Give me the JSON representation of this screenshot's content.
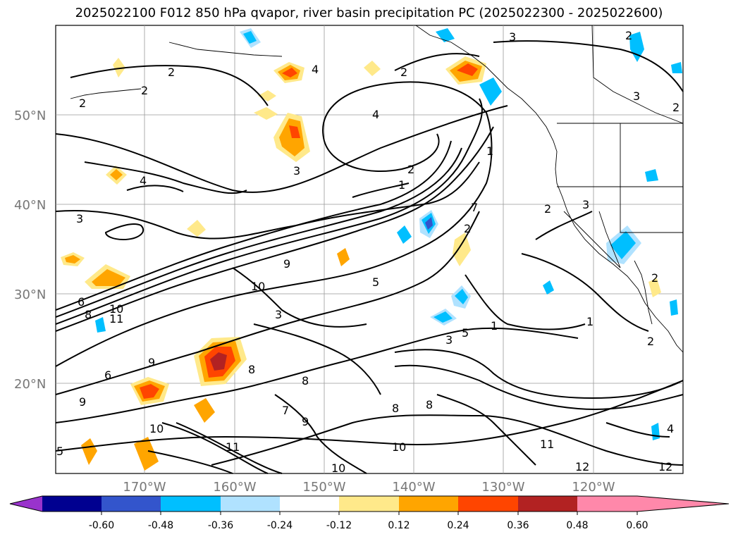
{
  "title": "2025022100 F012 850 hPa qvapor, river basin precipitation PC (2025022300 - 2025022600)",
  "map": {
    "lat_labels": [
      "50°N",
      "40°N",
      "30°N",
      "20°N"
    ],
    "lon_labels": [
      "170°W",
      "160°W",
      "150°W",
      "140°W",
      "130°W",
      "120°W"
    ],
    "contour_labels": [
      "2",
      "2",
      "4",
      "2",
      "3",
      "2",
      "4",
      "2",
      "3",
      "4",
      "3",
      "3",
      "1",
      "2",
      "1",
      "7",
      "2",
      "2",
      "3",
      "2",
      "9",
      "10",
      "6",
      "8",
      "10",
      "11",
      "5",
      "3",
      "9",
      "8",
      "7",
      "8",
      "8",
      "9",
      "6",
      "5",
      "8",
      "9",
      "10",
      "11",
      "12",
      "10",
      "11",
      "12",
      "10",
      "4",
      "1",
      "1",
      "2",
      "2",
      "5",
      "3"
    ]
  },
  "colorbar": {
    "ticks": [
      "-0.60",
      "-0.48",
      "-0.36",
      "-0.24",
      "-0.12",
      "0.12",
      "0.24",
      "0.36",
      "0.48",
      "0.60"
    ],
    "colors": [
      "#9933cc",
      "#000090",
      "#3355cc",
      "#00bfff",
      "#b0e2ff",
      "#ffffff",
      "#ffe98a",
      "#ffa500",
      "#ff4500",
      "#b22222",
      "#ff88aa"
    ]
  }
}
